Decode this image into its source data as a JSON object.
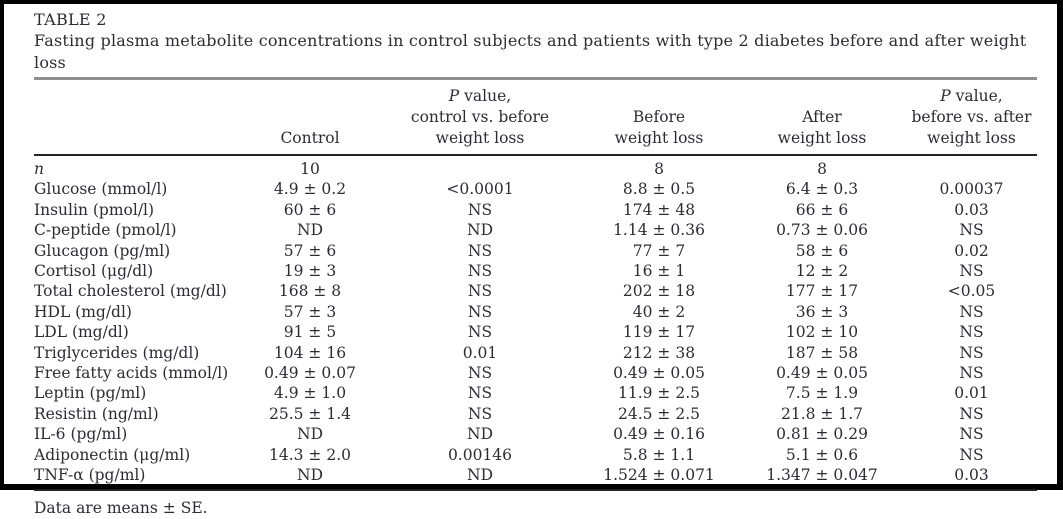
{
  "colors": {
    "background": "#ffffff",
    "frame": "#000000",
    "text": "#2c2c34",
    "caption_rule": "#8e8e8e",
    "table_rule": "#222222"
  },
  "chart_data": {
    "type": "table",
    "title": "TABLE 2",
    "caption": "Fasting plasma metabolite concentrations in control subjects and patients with type 2 diabetes before and after weight loss",
    "columns": [
      "",
      "Control",
      "P value, control vs. before weight loss",
      "Before weight loss",
      "After weight loss",
      "P value, before vs. after weight loss"
    ],
    "headers": {
      "control": "Control",
      "p1_italic": "P",
      "p1_rest": " value,\ncontrol vs. before\nweight loss",
      "before": "Before\nweight loss",
      "after": "After\nweight loss",
      "p2_italic": "P",
      "p2_rest": " value,\nbefore vs. after\nweight loss"
    },
    "rows": [
      {
        "label": "n",
        "label_italic": true,
        "values": [
          "10",
          "",
          "8",
          "8",
          ""
        ]
      },
      {
        "label": "Glucose (mmol/l)",
        "label_italic": false,
        "values": [
          "4.9 ± 0.2",
          "<0.0001",
          "8.8 ± 0.5",
          "6.4 ± 0.3",
          "0.00037"
        ]
      },
      {
        "label": "Insulin (pmol/l)",
        "label_italic": false,
        "values": [
          "60 ± 6",
          "NS",
          "174 ± 48",
          "66 ± 6",
          "0.03"
        ]
      },
      {
        "label": "C-peptide (pmol/l)",
        "label_italic": false,
        "values": [
          "ND",
          "ND",
          "1.14 ± 0.36",
          "0.73 ± 0.06",
          "NS"
        ]
      },
      {
        "label": "Glucagon (pg/ml)",
        "label_italic": false,
        "values": [
          "57 ± 6",
          "NS",
          "77 ± 7",
          "58 ± 6",
          "0.02"
        ]
      },
      {
        "label": "Cortisol (μg/dl)",
        "label_italic": false,
        "values": [
          "19 ± 3",
          "NS",
          "16 ± 1",
          "12 ± 2",
          "NS"
        ]
      },
      {
        "label": "Total cholesterol (mg/dl)",
        "label_italic": false,
        "values": [
          "168 ± 8",
          "NS",
          "202 ± 18",
          "177 ± 17",
          "<0.05"
        ]
      },
      {
        "label": "HDL (mg/dl)",
        "label_italic": false,
        "values": [
          "57 ± 3",
          "NS",
          "40 ± 2",
          "36 ± 3",
          "NS"
        ]
      },
      {
        "label": "LDL (mg/dl)",
        "label_italic": false,
        "values": [
          "91 ± 5",
          "NS",
          "119 ± 17",
          "102 ± 10",
          "NS"
        ]
      },
      {
        "label": "Triglycerides (mg/dl)",
        "label_italic": false,
        "values": [
          "104 ± 16",
          "0.01",
          "212 ± 38",
          "187 ± 58",
          "NS"
        ]
      },
      {
        "label": "Free fatty acids (mmol/l)",
        "label_italic": false,
        "values": [
          "0.49 ± 0.07",
          "NS",
          "0.49 ± 0.05",
          "0.49 ± 0.05",
          "NS"
        ]
      },
      {
        "label": "Leptin (pg/ml)",
        "label_italic": false,
        "values": [
          "4.9 ± 1.0",
          "NS",
          "11.9 ± 2.5",
          "7.5 ± 1.9",
          "0.01"
        ]
      },
      {
        "label": "Resistin (ng/ml)",
        "label_italic": false,
        "values": [
          "25.5 ± 1.4",
          "NS",
          "24.5 ± 2.5",
          "21.8 ± 1.7",
          "NS"
        ]
      },
      {
        "label": "IL-6 (pg/ml)",
        "label_italic": false,
        "values": [
          "ND",
          "ND",
          "0.49 ± 0.16",
          "0.81 ± 0.29",
          "NS"
        ]
      },
      {
        "label": "Adiponectin (μg/ml)",
        "label_italic": false,
        "values": [
          "14.3 ± 2.0",
          "0.00146",
          "5.8 ± 1.1",
          "5.1 ± 0.6",
          "NS"
        ]
      },
      {
        "label": "TNF-α (pg/ml)",
        "label_italic": false,
        "values": [
          "ND",
          "ND",
          "1.524 ± 0.071",
          "1.347 ± 0.047",
          "0.03"
        ]
      }
    ],
    "footnote": "Data are means ± SE."
  }
}
